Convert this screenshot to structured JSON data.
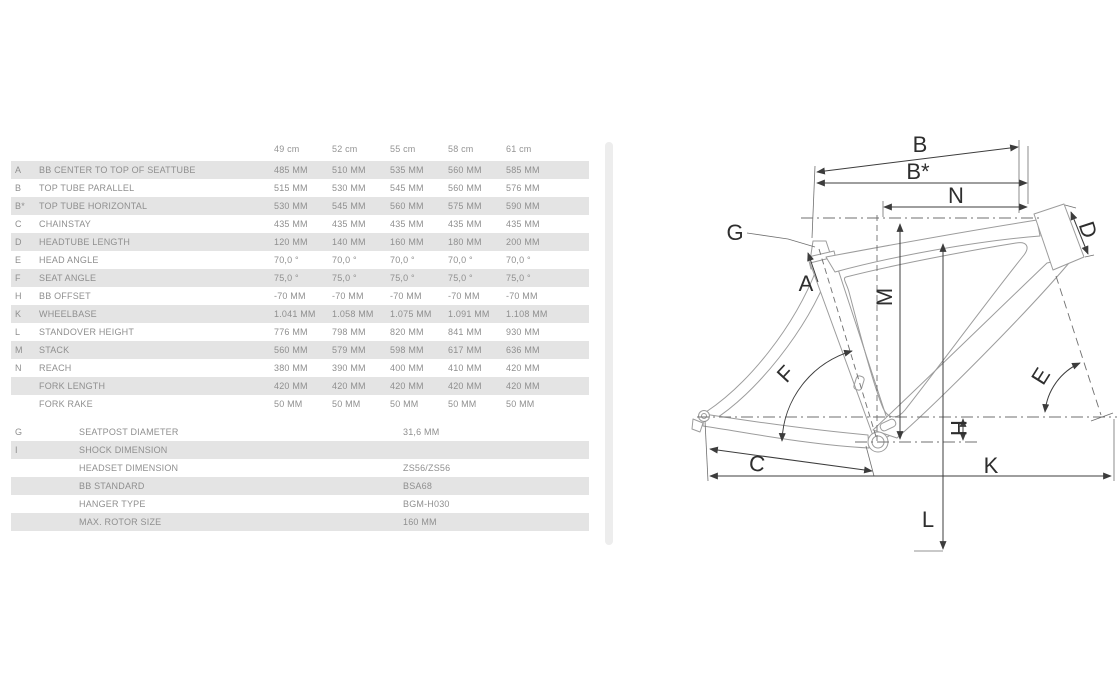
{
  "table": {
    "columns": [
      "49 cm",
      "52 cm",
      "55 cm",
      "58 cm",
      "61 cm"
    ],
    "rows": [
      {
        "key": "A",
        "label": "BB CENTER TO TOP OF SEATTUBE",
        "values": [
          "485 MM",
          "510 MM",
          "535 MM",
          "560 MM",
          "585 MM"
        ]
      },
      {
        "key": "B",
        "label": "TOP TUBE PARALLEL",
        "values": [
          "515 MM",
          "530 MM",
          "545 MM",
          "560 MM",
          "576 MM"
        ]
      },
      {
        "key": "B*",
        "label": "TOP TUBE HORIZONTAL",
        "values": [
          "530 MM",
          "545 MM",
          "560 MM",
          "575 MM",
          "590 MM"
        ]
      },
      {
        "key": "C",
        "label": "CHAINSTAY",
        "values": [
          "435 MM",
          "435 MM",
          "435 MM",
          "435 MM",
          "435 MM"
        ]
      },
      {
        "key": "D",
        "label": "HEADTUBE LENGTH",
        "values": [
          "120 MM",
          "140 MM",
          "160 MM",
          "180 MM",
          "200 MM"
        ]
      },
      {
        "key": "E",
        "label": "HEAD ANGLE",
        "values": [
          "70,0 °",
          "70,0 °",
          "70,0 °",
          "70,0 °",
          "70,0 °"
        ]
      },
      {
        "key": "F",
        "label": "SEAT ANGLE",
        "values": [
          "75,0 °",
          "75,0 °",
          "75,0 °",
          "75,0 °",
          "75,0 °"
        ]
      },
      {
        "key": "H",
        "label": "BB OFFSET",
        "values": [
          "-70 MM",
          "-70 MM",
          "-70 MM",
          "-70 MM",
          "-70 MM"
        ]
      },
      {
        "key": "K",
        "label": "WHEELBASE",
        "values": [
          "1.041 MM",
          "1.058 MM",
          "1.075 MM",
          "1.091 MM",
          "1.108 MM"
        ]
      },
      {
        "key": "L",
        "label": "STANDOVER HEIGHT",
        "values": [
          "776 MM",
          "798 MM",
          "820 MM",
          "841 MM",
          "930 MM"
        ]
      },
      {
        "key": "M",
        "label": "STACK",
        "values": [
          "560 MM",
          "579 MM",
          "598 MM",
          "617 MM",
          "636 MM"
        ]
      },
      {
        "key": "N",
        "label": "REACH",
        "values": [
          "380 MM",
          "390 MM",
          "400 MM",
          "410 MM",
          "420 MM"
        ]
      },
      {
        "key": "",
        "label": "FORK LENGTH",
        "values": [
          "420 MM",
          "420 MM",
          "420 MM",
          "420 MM",
          "420 MM"
        ]
      },
      {
        "key": "",
        "label": "FORK RAKE",
        "values": [
          "50 MM",
          "50 MM",
          "50 MM",
          "50 MM",
          "50 MM"
        ]
      }
    ],
    "specs": [
      {
        "key": "G",
        "label": "SEATPOST DIAMETER",
        "value": "31,6 MM"
      },
      {
        "key": "I",
        "label": "SHOCK DIMENSION",
        "value": ""
      },
      {
        "key": "",
        "label": "HEADSET DIMENSION",
        "value": "ZS56/ZS56"
      },
      {
        "key": "",
        "label": "BB STANDARD",
        "value": "BSA68"
      },
      {
        "key": "",
        "label": "HANGER TYPE",
        "value": "BGM-H030"
      },
      {
        "key": "",
        "label": "MAX. ROTOR SIZE",
        "value": "160 MM"
      }
    ]
  },
  "diagram": {
    "labels": {
      "a": "A",
      "b": "B",
      "b_star": "B*",
      "c": "C",
      "d": "D",
      "e": "E",
      "f": "F",
      "g": "G",
      "h": "H",
      "k": "K",
      "l": "L",
      "m": "M",
      "n": "N"
    }
  },
  "colors": {
    "row_stripe": "#e4e4e4",
    "table_text": "#8f8f8f",
    "dimension_line": "#3c3c3c",
    "frame_outline": "#9c9c9c"
  }
}
